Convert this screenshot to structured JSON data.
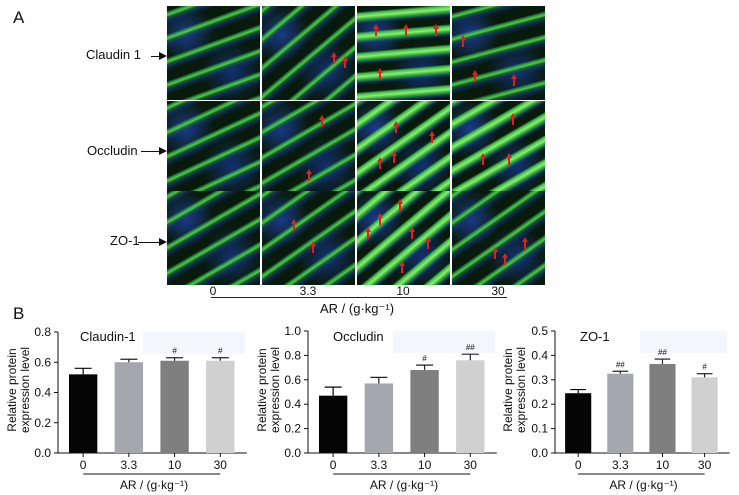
{
  "panel_a": {
    "letter": "A",
    "rows": [
      {
        "label": "Claudin 1"
      },
      {
        "label": "Occludin"
      },
      {
        "label": "ZO-1"
      }
    ],
    "doses": [
      "0",
      "3.3",
      "10",
      "30"
    ],
    "x_title": "AR / (g·kg⁻¹)"
  },
  "panel_b": {
    "letter": "B"
  },
  "chart_data": [
    {
      "type": "bar",
      "title": "Claudin-1",
      "xlabel": "AR / (g·kg⁻¹)",
      "ylabel": "Relative protein expression level",
      "categories": [
        "0",
        "3.3",
        "10",
        "30"
      ],
      "values": [
        0.52,
        0.6,
        0.61,
        0.61
      ],
      "errors": [
        0.04,
        0.02,
        0.02,
        0.02
      ],
      "significance": [
        "",
        "",
        "#",
        "#"
      ],
      "ylim": [
        0,
        0.8
      ],
      "yticks": [
        "0.0",
        "0.2",
        "0.4",
        "0.6",
        "0.8"
      ],
      "colors": [
        "#050505",
        "#a6a6ad",
        "#7f7f7f",
        "#d0d0d0"
      ]
    },
    {
      "type": "bar",
      "title": "Occludin",
      "xlabel": "AR / (g·kg⁻¹)",
      "ylabel": "Relative protein expression level",
      "categories": [
        "0",
        "3.3",
        "10",
        "30"
      ],
      "values": [
        0.47,
        0.57,
        0.68,
        0.76
      ],
      "errors": [
        0.07,
        0.05,
        0.04,
        0.05
      ],
      "significance": [
        "",
        "",
        "#",
        "##"
      ],
      "ylim": [
        0,
        1.0
      ],
      "yticks": [
        "0.0",
        "0.2",
        "0.4",
        "0.6",
        "0.8",
        "1.0"
      ],
      "colors": [
        "#050505",
        "#a6a6ad",
        "#7f7f7f",
        "#d0d0d0"
      ]
    },
    {
      "type": "bar",
      "title": "ZO-1",
      "xlabel": "AR / (g·kg⁻¹)",
      "ylabel": "Relative protein expression level",
      "categories": [
        "0",
        "3.3",
        "10",
        "30"
      ],
      "values": [
        0.245,
        0.325,
        0.365,
        0.31
      ],
      "errors": [
        0.015,
        0.01,
        0.02,
        0.015
      ],
      "significance": [
        "",
        "##",
        "##",
        "#"
      ],
      "ylim": [
        0,
        0.5
      ],
      "yticks": [
        "0.0",
        "0.1",
        "0.2",
        "0.3",
        "0.4",
        "0.5"
      ],
      "colors": [
        "#050505",
        "#a6a6ad",
        "#7f7f7f",
        "#d0d0d0"
      ]
    }
  ]
}
